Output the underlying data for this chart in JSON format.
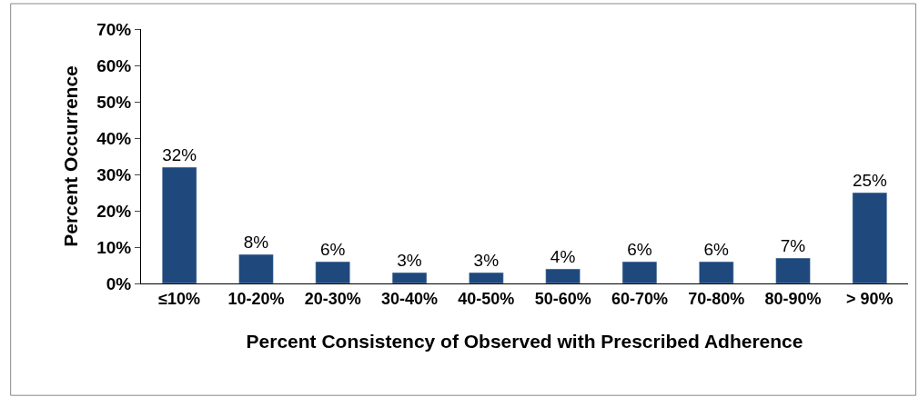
{
  "chart_data": {
    "type": "bar",
    "xlabel": "Percent Consistency of Observed with Prescribed Adherence",
    "ylabel": "Percent Occurrence",
    "categories": [
      "≤10%",
      "10-20%",
      "20-30%",
      "30-40%",
      "40-50%",
      "50-60%",
      "60-70%",
      "70-80%",
      "80-90%",
      "> 90%"
    ],
    "values": [
      32,
      8,
      6,
      3,
      3,
      4,
      6,
      6,
      7,
      25
    ],
    "value_labels": [
      "32%",
      "8%",
      "6%",
      "3%",
      "3%",
      "4%",
      "6%",
      "6%",
      "7%",
      "25%"
    ],
    "color": "#1f497d",
    "ylim": [
      0,
      70
    ],
    "yticks": [
      {
        "value": 0,
        "label": "0%"
      },
      {
        "value": 10,
        "label": "10%"
      },
      {
        "value": 20,
        "label": "20%"
      },
      {
        "value": 30,
        "label": "30%"
      },
      {
        "value": 40,
        "label": "40%"
      },
      {
        "value": 50,
        "label": "50%"
      },
      {
        "value": 60,
        "label": "60%"
      },
      {
        "value": 70,
        "label": "70%"
      }
    ],
    "legend": false
  }
}
